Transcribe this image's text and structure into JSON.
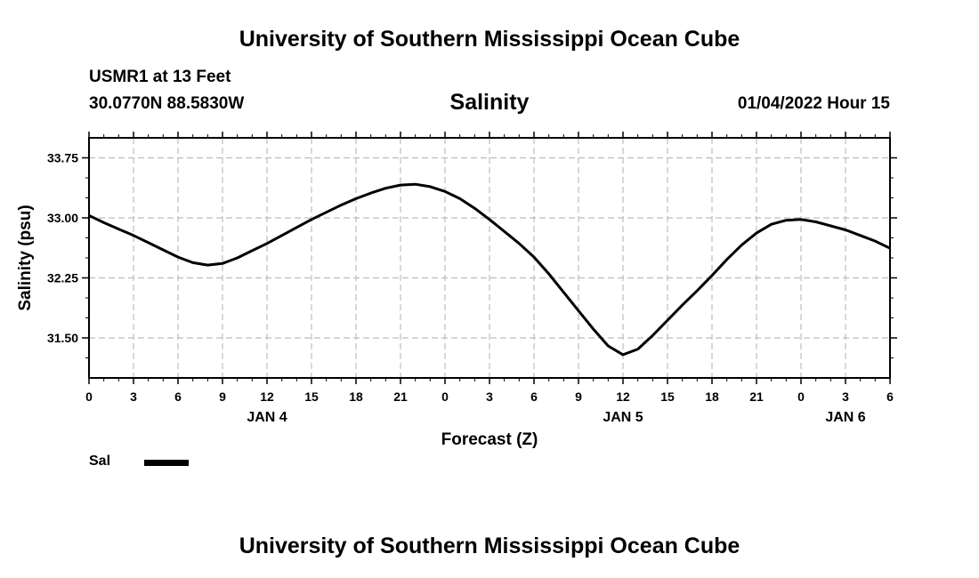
{
  "header": {
    "top_title": "University of Southern Mississippi Ocean Cube",
    "station": "USMR1 at 13 Feet",
    "coords": "30.0770N  88.5830W",
    "chart_title": "Salinity",
    "datetime": "01/04/2022 Hour 15"
  },
  "footer": {
    "bottom_title": "University of Southern Mississippi Ocean Cube"
  },
  "legend": {
    "label": "Sal",
    "color": "#000000"
  },
  "chart_data": {
    "type": "line",
    "title": "Salinity",
    "xlabel": "Forecast (Z)",
    "ylabel": "Salinity (psu)",
    "xlim": [
      0,
      54
    ],
    "ylim": [
      31.0,
      34.0
    ],
    "x_ticks": [
      0,
      3,
      6,
      9,
      12,
      15,
      18,
      21,
      24,
      27,
      30,
      33,
      36,
      39,
      42,
      45,
      48,
      51,
      54
    ],
    "x_tick_labels": [
      "0",
      "3",
      "6",
      "9",
      "12",
      "15",
      "18",
      "21",
      "0",
      "3",
      "6",
      "9",
      "12",
      "15",
      "18",
      "21",
      "0",
      "3",
      "6"
    ],
    "y_ticks": [
      31.5,
      32.25,
      33.0,
      33.75
    ],
    "y_tick_labels": [
      "31.50",
      "32.25",
      "33.00",
      "33.75"
    ],
    "day_labels": [
      {
        "x": 12,
        "label": "JAN 4"
      },
      {
        "x": 36,
        "label": "JAN 5"
      },
      {
        "x": 51,
        "label": "JAN 6"
      }
    ],
    "grid": true,
    "series": [
      {
        "name": "Sal",
        "x": [
          0,
          1,
          2,
          3,
          4,
          5,
          6,
          7,
          8,
          9,
          10,
          11,
          12,
          13,
          14,
          15,
          16,
          17,
          18,
          19,
          20,
          21,
          22,
          23,
          24,
          25,
          26,
          27,
          28,
          29,
          30,
          31,
          32,
          33,
          34,
          35,
          36,
          37,
          38,
          39,
          40,
          41,
          42,
          43,
          44,
          45,
          46,
          47,
          48,
          49,
          50,
          51,
          52,
          53,
          54
        ],
        "values": [
          33.03,
          32.94,
          32.86,
          32.78,
          32.69,
          32.6,
          32.51,
          32.44,
          32.41,
          32.43,
          32.5,
          32.59,
          32.68,
          32.78,
          32.88,
          32.98,
          33.07,
          33.16,
          33.24,
          33.31,
          33.37,
          33.41,
          33.42,
          33.39,
          33.33,
          33.24,
          33.12,
          32.98,
          32.83,
          32.68,
          32.51,
          32.3,
          32.07,
          31.84,
          31.61,
          31.4,
          31.29,
          31.36,
          31.53,
          31.72,
          31.91,
          32.09,
          32.28,
          32.48,
          32.66,
          32.81,
          32.92,
          32.97,
          32.98,
          32.95,
          32.9,
          32.85,
          32.78,
          32.71,
          32.62
        ]
      }
    ]
  }
}
